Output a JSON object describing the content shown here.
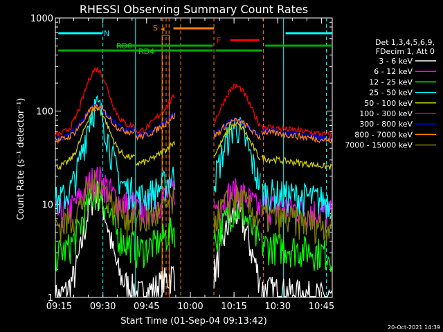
{
  "chart_data": {
    "type": "line",
    "title": "RHESSI Observing Summary Count Rates",
    "xlabel": "Start Time (01-Sep-04 09:13:42)",
    "ylabel": "Count Rate (s⁻¹ detector⁻¹)",
    "yscale": "log",
    "ylim": [
      1,
      1000
    ],
    "xlim_minutes": [
      0,
      95
    ],
    "x_ticks": [
      "09:15",
      "09:30",
      "09:45",
      "10:00",
      "10:15",
      "10:30",
      "10:45"
    ],
    "y_ticks": [
      "1",
      "10",
      "100",
      "1000"
    ],
    "timestamp": "20-Oct-2021 14:39",
    "legend": {
      "header": [
        "Det 1,3,4,5,6,9,",
        "FDecim 1, Att 0"
      ],
      "position": "right"
    },
    "flags": {
      "N": "N",
      "S": "S",
      "F": "F",
      "RD0": "RD0",
      "RD4": "RD4"
    },
    "series": [
      {
        "name": "3 - 6 keV",
        "color": "#ffffff",
        "base": 1.0,
        "peak": 12
      },
      {
        "name": "6 - 12 keV",
        "color": "#ff00ff",
        "base": 8,
        "peak": 17
      },
      {
        "name": "12 - 25 keV",
        "color": "#00ff00",
        "base": 3,
        "peak": 12
      },
      {
        "name": "25 - 50 keV",
        "color": "#00ffff",
        "base": 11,
        "peak": 100
      },
      {
        "name": "50 - 100 keV",
        "color": "#cccc00",
        "base": 25,
        "peak": 95
      },
      {
        "name": "100 - 300 keV",
        "color": "#ff0000",
        "base": 55,
        "peak": 250
      },
      {
        "name": "300 - 800 keV",
        "color": "#0000ff",
        "base": 50,
        "peak": 100
      },
      {
        "name": "800 - 7000 keV",
        "color": "#ff8000",
        "base": 48,
        "peak": 98
      },
      {
        "name": "7000 - 15000 keV",
        "color": "#808000",
        "base": 6,
        "peak": 15
      }
    ]
  }
}
